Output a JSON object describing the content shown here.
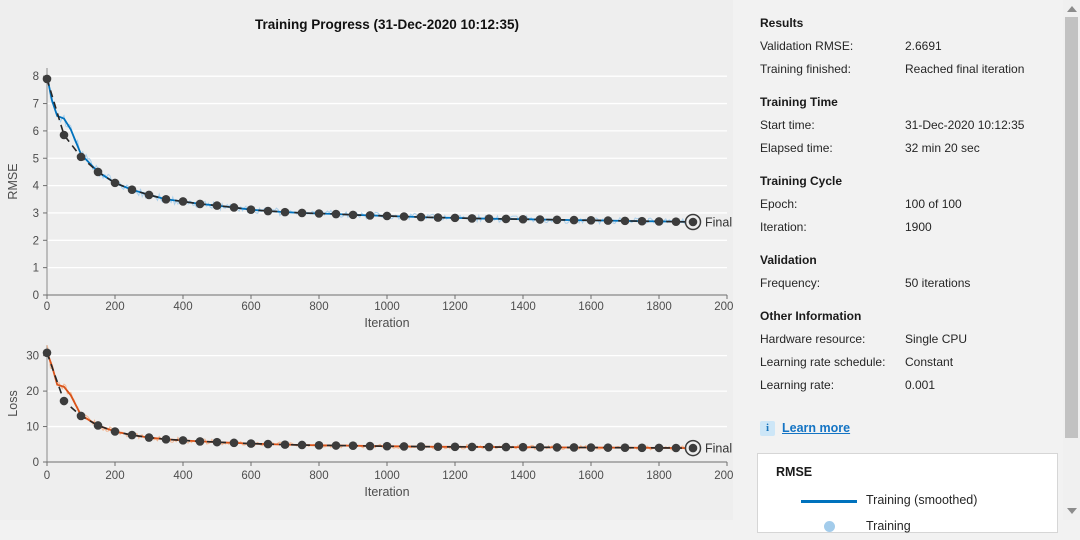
{
  "title": "Training Progress (31-Dec-2020 10:12:35)",
  "colors": {
    "plots_bg": "#eeeeee",
    "panel_bg": "#f2f2f2",
    "grid": "#ffffff",
    "spine": "#8a8a8a",
    "tick_label": "#4d4d4d",
    "train_smoothed_rmse": "#0072bd",
    "train_raw_rmse": "#a3cceb",
    "train_smoothed_loss": "#d95319",
    "train_raw_loss": "#f2b28c",
    "validation_line": "#262626",
    "marker": "#3c3c3c",
    "link": "#1474c4"
  },
  "panel": {
    "sections": [
      {
        "header": "Results",
        "rows": [
          {
            "label": "Validation RMSE:",
            "value": "2.6691"
          },
          {
            "label": "Training finished:",
            "value": "Reached final iteration"
          }
        ]
      },
      {
        "header": "Training Time",
        "rows": [
          {
            "label": "Start time:",
            "value": "31-Dec-2020 10:12:35"
          },
          {
            "label": "Elapsed time:",
            "value": "32 min 20 sec"
          }
        ]
      },
      {
        "header": "Training Cycle",
        "rows": [
          {
            "label": "Epoch:",
            "value": "100 of 100"
          },
          {
            "label": "Iteration:",
            "value": "1900"
          }
        ]
      },
      {
        "header": "Validation",
        "rows": [
          {
            "label": "Frequency:",
            "value": "50 iterations"
          }
        ]
      },
      {
        "header": "Other Information",
        "rows": [
          {
            "label": "Hardware resource:",
            "value": "Single CPU"
          },
          {
            "label": "Learning rate schedule:",
            "value": "Constant"
          },
          {
            "label": "Learning rate:",
            "value": "0.001"
          }
        ]
      }
    ],
    "info_icon_glyph": "i",
    "learn_more": "Learn more"
  },
  "legend": {
    "title": "RMSE",
    "items": [
      {
        "swatch": "line",
        "color": "#0072bd",
        "label": "Training (smoothed)"
      },
      {
        "swatch": "dot",
        "color": "#a3cceb",
        "label": "Training"
      }
    ]
  },
  "chart_data": [
    {
      "type": "line",
      "name": "rmse",
      "xlabel": "Iteration",
      "ylabel": "RMSE",
      "xlim": [
        0,
        2000
      ],
      "ylim": [
        0,
        8.3
      ],
      "xticks": [
        0,
        200,
        400,
        600,
        800,
        1000,
        1200,
        1400,
        1600,
        1800,
        2000
      ],
      "yticks": [
        0,
        1,
        2,
        3,
        4,
        5,
        6,
        7,
        8
      ],
      "grid": "horizontal",
      "markers_x": [
        0,
        50,
        100,
        150,
        200,
        250,
        300,
        350,
        400,
        450,
        500,
        550,
        600,
        650,
        700,
        750,
        800,
        850,
        900,
        950,
        1000,
        1050,
        1100,
        1150,
        1200,
        1250,
        1300,
        1350,
        1400,
        1450,
        1500,
        1550,
        1600,
        1650,
        1700,
        1750,
        1800,
        1850,
        1900
      ],
      "series": [
        {
          "name": "Training (smoothed)",
          "style": "solid",
          "color": "#0072bd",
          "noise_color": "#a3cceb",
          "x": [
            0,
            15,
            30,
            50,
            70,
            100,
            150,
            200,
            250,
            300,
            350,
            400,
            450,
            500,
            550,
            600,
            650,
            700,
            750,
            800,
            850,
            900,
            950,
            1000,
            1050,
            1100,
            1150,
            1200,
            1250,
            1300,
            1350,
            1400,
            1450,
            1500,
            1550,
            1600,
            1650,
            1700,
            1750,
            1800,
            1850,
            1900
          ],
          "values": [
            8.0,
            7.1,
            6.55,
            6.45,
            6.05,
            5.15,
            4.5,
            4.1,
            3.85,
            3.66,
            3.5,
            3.42,
            3.33,
            3.27,
            3.2,
            3.12,
            3.07,
            3.03,
            3.0,
            2.98,
            2.96,
            2.93,
            2.91,
            2.89,
            2.87,
            2.85,
            2.83,
            2.82,
            2.8,
            2.79,
            2.78,
            2.77,
            2.76,
            2.75,
            2.74,
            2.73,
            2.72,
            2.71,
            2.7,
            2.69,
            2.68,
            2.6691
          ]
        },
        {
          "name": "Validation",
          "style": "dashed",
          "color": "#262626",
          "marker_color": "#3c3c3c",
          "values": [
            7.9,
            5.85,
            5.05,
            4.5,
            4.1,
            3.85,
            3.66,
            3.5,
            3.42,
            3.33,
            3.27,
            3.2,
            3.12,
            3.07,
            3.03,
            3.0,
            2.98,
            2.96,
            2.93,
            2.91,
            2.89,
            2.87,
            2.85,
            2.83,
            2.82,
            2.8,
            2.79,
            2.78,
            2.77,
            2.76,
            2.75,
            2.74,
            2.73,
            2.72,
            2.71,
            2.7,
            2.69,
            2.68,
            2.6691
          ]
        }
      ],
      "final": {
        "x": 1900,
        "value": 2.6691,
        "label": "Final"
      }
    },
    {
      "type": "line",
      "name": "loss",
      "xlabel": "Iteration",
      "ylabel": "Loss",
      "xlim": [
        0,
        2000
      ],
      "ylim": [
        0,
        33
      ],
      "xticks": [
        0,
        200,
        400,
        600,
        800,
        1000,
        1200,
        1400,
        1600,
        1800,
        2000
      ],
      "yticks": [
        0,
        10,
        20,
        30
      ],
      "grid": "horizontal",
      "markers_x": [
        0,
        50,
        100,
        150,
        200,
        250,
        300,
        350,
        400,
        450,
        500,
        550,
        600,
        650,
        700,
        750,
        800,
        850,
        900,
        950,
        1000,
        1050,
        1100,
        1150,
        1200,
        1250,
        1300,
        1350,
        1400,
        1450,
        1500,
        1550,
        1600,
        1650,
        1700,
        1750,
        1800,
        1850,
        1900
      ],
      "series": [
        {
          "name": "Training (smoothed)",
          "style": "solid",
          "color": "#d95319",
          "noise_color": "#f2b28c",
          "x": [
            0,
            15,
            30,
            50,
            70,
            100,
            150,
            200,
            250,
            300,
            350,
            400,
            450,
            500,
            550,
            600,
            650,
            700,
            750,
            800,
            850,
            900,
            950,
            1000,
            1050,
            1100,
            1150,
            1200,
            1250,
            1300,
            1350,
            1400,
            1450,
            1500,
            1550,
            1600,
            1650,
            1700,
            1750,
            1800,
            1850,
            1900
          ],
          "values": [
            31.0,
            27.0,
            21.8,
            21.2,
            18.8,
            13.2,
            10.3,
            8.6,
            7.6,
            6.9,
            6.4,
            6.1,
            5.8,
            5.6,
            5.4,
            5.2,
            5.05,
            4.9,
            4.8,
            4.7,
            4.65,
            4.6,
            4.5,
            4.45,
            4.4,
            4.35,
            4.3,
            4.28,
            4.25,
            4.22,
            4.2,
            4.17,
            4.15,
            4.12,
            4.1,
            4.08,
            4.05,
            4.03,
            4.0,
            3.98,
            3.95,
            3.93
          ]
        },
        {
          "name": "Validation",
          "style": "dashed",
          "color": "#262626",
          "marker_color": "#3c3c3c",
          "values": [
            30.8,
            17.2,
            13.0,
            10.3,
            8.6,
            7.6,
            6.9,
            6.4,
            6.1,
            5.8,
            5.6,
            5.4,
            5.2,
            5.05,
            4.9,
            4.8,
            4.7,
            4.65,
            4.6,
            4.5,
            4.45,
            4.4,
            4.35,
            4.3,
            4.28,
            4.25,
            4.22,
            4.2,
            4.17,
            4.15,
            4.12,
            4.1,
            4.08,
            4.05,
            4.03,
            4.0,
            3.98,
            3.95,
            3.93
          ]
        }
      ],
      "final": {
        "x": 1900,
        "value": 3.93,
        "label": "Final"
      }
    }
  ]
}
